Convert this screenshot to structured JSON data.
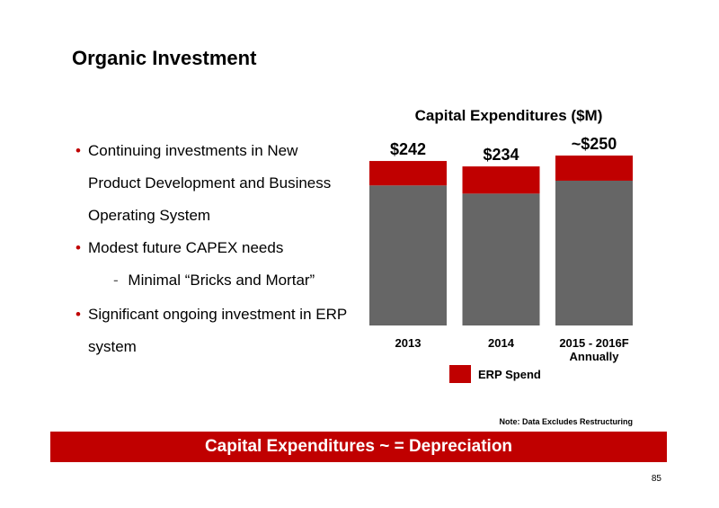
{
  "slide": {
    "title": "Organic Investment",
    "page_number": "85"
  },
  "bullets": [
    "Continuing investments in New Product Development and Business Operating System",
    "Modest future CAPEX needs",
    "Significant ongoing investment in ERP system"
  ],
  "subbullets": [
    "Minimal “Bricks and Mortar”"
  ],
  "note": "Note:  Data Excludes Restructuring",
  "banner": "Capital Expenditures ~ = Depreciation",
  "colors": {
    "accent": "#c00000",
    "bar_base": "#666666"
  },
  "chart_data": {
    "type": "bar",
    "title": "Capital Expenditures ($M)",
    "categories": [
      "2013",
      "2014",
      "2015 - 2016F Annually"
    ],
    "category_lines": [
      [
        "2013"
      ],
      [
        "2014"
      ],
      [
        "2015 - 2016F",
        "Annually"
      ]
    ],
    "series": [
      {
        "values": [
          206,
          194,
          213
        ]
      },
      {
        "name": "ERP Spend",
        "values": [
          36,
          40,
          37
        ]
      }
    ],
    "totals": [
      242,
      234,
      250
    ],
    "total_labels": [
      "$242",
      "$234",
      "~$250"
    ],
    "ylim": [
      0,
      250
    ],
    "stacked": true,
    "grid": false,
    "legend": "bottom"
  }
}
